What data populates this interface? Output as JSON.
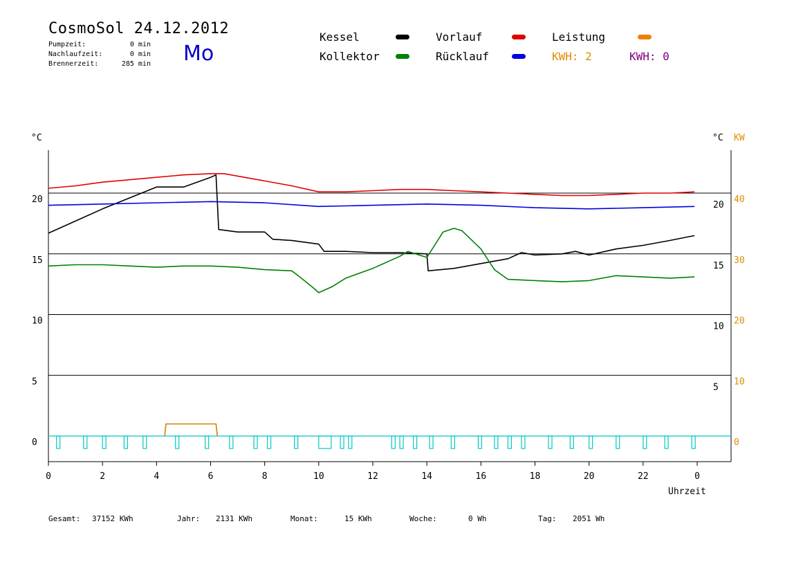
{
  "header": {
    "title": "CosmoSol 24.12.2012",
    "day": "Mo",
    "stats": [
      {
        "label": "Pumpzeit:",
        "value": "0 min"
      },
      {
        "label": "Nachlaufzeit:",
        "value": "0 min"
      },
      {
        "label": "Brennerzeit:",
        "value": "285 min"
      }
    ]
  },
  "legend": {
    "items": [
      {
        "label": "Kessel",
        "color": "#000000"
      },
      {
        "label": "Vorlauf",
        "color": "#e00000"
      },
      {
        "label": "Leistung",
        "color": "#f08000"
      },
      {
        "label": "Kollektor",
        "color": "#008000"
      },
      {
        "label": "Rücklauf",
        "color": "#0000e0"
      }
    ],
    "kwh1": "KWH: 2",
    "kwh2": "KWH: 0",
    "kwh1_color": "#e08c00",
    "kwh2_color": "#800080"
  },
  "footer": {
    "gesamt_label": "Gesamt:",
    "gesamt_value": "37152 KWh",
    "jahr_label": "Jahr:",
    "jahr_value": "2131 KWh",
    "monat_label": "Monat:",
    "monat_value": "15 KWh",
    "woche_label": "Woche:",
    "woche_value": "0 Wh",
    "tag_label": "Tag:",
    "tag_value": "2051 Wh"
  },
  "chart_data": {
    "type": "line",
    "xlabel": "Uhrzeit",
    "ylabel_left": "°C",
    "ylabel_right": "°C",
    "ylabel_right2": "KW",
    "x_ticks": [
      "0",
      "2",
      "4",
      "6",
      "8",
      "10",
      "12",
      "14",
      "16",
      "18",
      "20",
      "22",
      "0"
    ],
    "y_left_ticks": [
      0,
      5,
      10,
      15,
      20
    ],
    "y_right_ticks": [
      5,
      10,
      15,
      20
    ],
    "y_kw_ticks": [
      0,
      10,
      20,
      30,
      40
    ],
    "xlim": [
      0,
      24
    ],
    "ylim": [
      -2,
      24
    ],
    "grid": true,
    "series": [
      {
        "name": "Kessel",
        "color": "#000000",
        "points": [
          [
            0,
            16.7
          ],
          [
            1,
            17.7
          ],
          [
            2,
            18.7
          ],
          [
            3,
            19.6
          ],
          [
            4,
            20.5
          ],
          [
            5,
            20.5
          ],
          [
            6,
            21.3
          ],
          [
            6.2,
            21.5
          ],
          [
            6.3,
            17.0
          ],
          [
            7,
            16.8
          ],
          [
            8,
            16.8
          ],
          [
            8.3,
            16.2
          ],
          [
            9,
            16.1
          ],
          [
            10,
            15.8
          ],
          [
            10.2,
            15.2
          ],
          [
            11,
            15.2
          ],
          [
            12,
            15.1
          ],
          [
            13,
            15.1
          ],
          [
            14,
            15.0
          ],
          [
            14.05,
            13.6
          ],
          [
            15,
            13.8
          ],
          [
            16,
            14.2
          ],
          [
            17,
            14.6
          ],
          [
            17.5,
            15.1
          ],
          [
            18,
            14.9
          ],
          [
            19,
            15.0
          ],
          [
            19.5,
            15.2
          ],
          [
            20,
            14.9
          ],
          [
            21,
            15.4
          ],
          [
            22,
            15.7
          ],
          [
            23,
            16.1
          ],
          [
            23.9,
            16.5
          ]
        ]
      },
      {
        "name": "Vorlauf",
        "color": "#e00000",
        "points": [
          [
            0,
            20.4
          ],
          [
            1,
            20.6
          ],
          [
            2,
            20.9
          ],
          [
            3,
            21.1
          ],
          [
            4,
            21.3
          ],
          [
            5,
            21.5
          ],
          [
            6,
            21.6
          ],
          [
            6.5,
            21.6
          ],
          [
            7,
            21.4
          ],
          [
            8,
            21.0
          ],
          [
            9,
            20.6
          ],
          [
            10,
            20.1
          ],
          [
            11,
            20.1
          ],
          [
            12,
            20.2
          ],
          [
            13,
            20.3
          ],
          [
            14,
            20.3
          ],
          [
            15,
            20.2
          ],
          [
            16,
            20.1
          ],
          [
            17,
            20.0
          ],
          [
            18,
            19.9
          ],
          [
            19,
            19.8
          ],
          [
            20,
            19.8
          ],
          [
            21,
            19.9
          ],
          [
            22,
            20.0
          ],
          [
            23,
            20.0
          ],
          [
            23.9,
            20.1
          ]
        ]
      },
      {
        "name": "Rücklauf",
        "color": "#0000e0",
        "points": [
          [
            0,
            19.0
          ],
          [
            2,
            19.1
          ],
          [
            4,
            19.2
          ],
          [
            6,
            19.3
          ],
          [
            8,
            19.2
          ],
          [
            10,
            18.9
          ],
          [
            12,
            19.0
          ],
          [
            14,
            19.1
          ],
          [
            16,
            19.0
          ],
          [
            18,
            18.8
          ],
          [
            20,
            18.7
          ],
          [
            22,
            18.8
          ],
          [
            23.9,
            18.9
          ]
        ]
      },
      {
        "name": "Kollektor",
        "color": "#008000",
        "points": [
          [
            0,
            14.0
          ],
          [
            1,
            14.1
          ],
          [
            2,
            14.1
          ],
          [
            3,
            14.0
          ],
          [
            4,
            13.9
          ],
          [
            5,
            14.0
          ],
          [
            6,
            14.0
          ],
          [
            7,
            13.9
          ],
          [
            8,
            13.7
          ],
          [
            9,
            13.6
          ],
          [
            9.3,
            13.1
          ],
          [
            9.8,
            12.2
          ],
          [
            10,
            11.8
          ],
          [
            10.5,
            12.3
          ],
          [
            11,
            13.0
          ],
          [
            12,
            13.8
          ],
          [
            13,
            14.8
          ],
          [
            13.3,
            15.2
          ],
          [
            14,
            14.7
          ],
          [
            14.6,
            16.8
          ],
          [
            15,
            17.1
          ],
          [
            15.3,
            16.9
          ],
          [
            16,
            15.4
          ],
          [
            16.5,
            13.7
          ],
          [
            17,
            12.9
          ],
          [
            18,
            12.8
          ],
          [
            19,
            12.7
          ],
          [
            20,
            12.8
          ],
          [
            21,
            13.2
          ],
          [
            22,
            13.1
          ],
          [
            23,
            13.0
          ],
          [
            23.9,
            13.1
          ]
        ]
      },
      {
        "name": "Leistung",
        "color": "#d08000",
        "points": [
          [
            4.3,
            0
          ],
          [
            4.35,
            1.0
          ],
          [
            6.2,
            1.0
          ],
          [
            6.25,
            0
          ]
        ]
      }
    ],
    "cyan_pulses": [
      0.3,
      1.3,
      2.0,
      2.8,
      3.5,
      4.7,
      5.8,
      6.7,
      7.6,
      8.1,
      9.1,
      10.0,
      10.8,
      11.1,
      12.7,
      13.0,
      13.5,
      14.1,
      14.9,
      15.9,
      16.5,
      17.0,
      17.5,
      18.5,
      19.3,
      20.0,
      21.0,
      22.0,
      22.8,
      23.8
    ]
  }
}
